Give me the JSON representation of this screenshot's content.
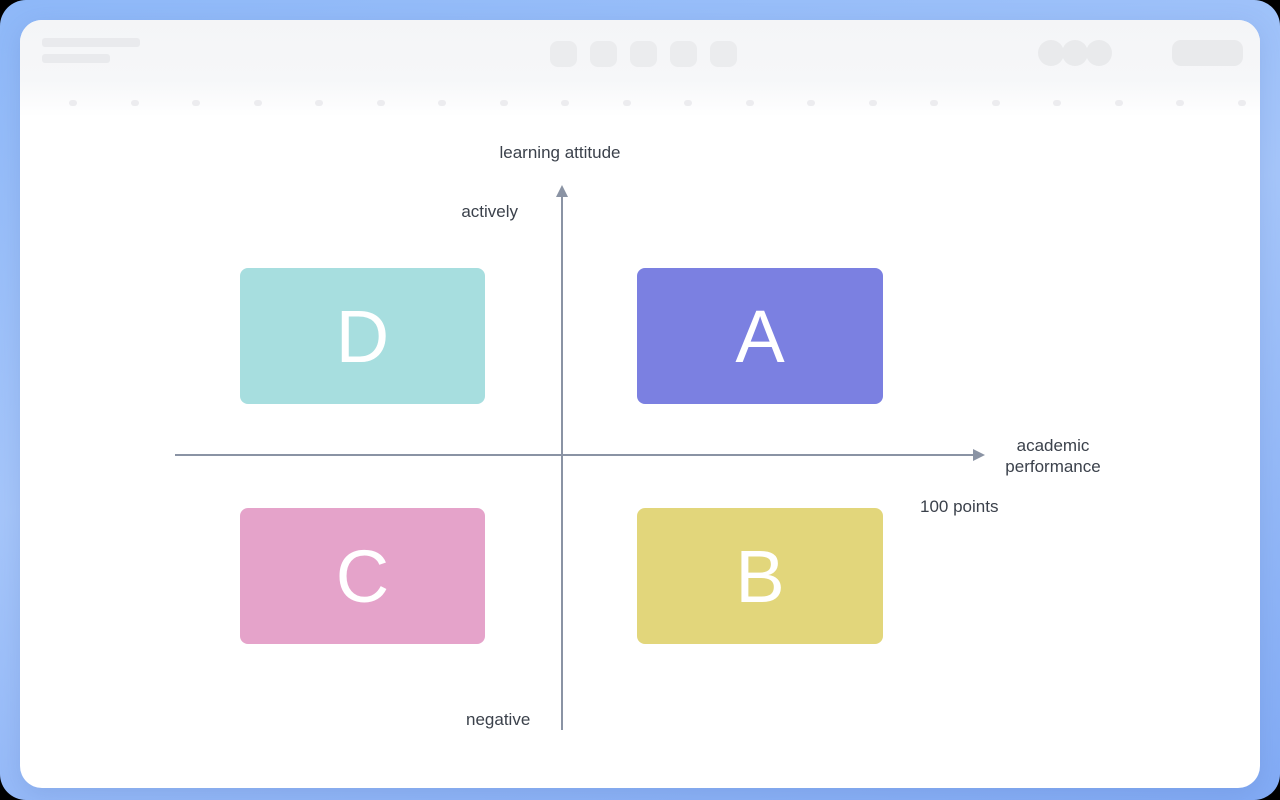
{
  "frame": {
    "background_gradient": [
      "#8eb8f8",
      "#a6c6fa",
      "#82abf5"
    ]
  },
  "toolbar": {
    "skeleton_bar_count": 2,
    "center_button_count": 5,
    "circle_count": 3,
    "dot_count": 20,
    "skeleton_color": "#e9eaec"
  },
  "diagram": {
    "axis_color": "#8a93a4",
    "text_color": "#3b414b",
    "y_axis_title": "learning attitude",
    "y_positive_label": "actively",
    "y_negative_label": "negative",
    "x_axis_label_line1": "academic",
    "x_axis_label_line2": "performance",
    "x_axis_scale_label": "100 points",
    "quadrants": [
      {
        "id": "A",
        "label": "A",
        "position": "top-right",
        "color": "#7b80e1"
      },
      {
        "id": "B",
        "label": "B",
        "position": "bottom-right",
        "color": "#e2d67b"
      },
      {
        "id": "C",
        "label": "C",
        "position": "bottom-left",
        "color": "#e5a3ca"
      },
      {
        "id": "D",
        "label": "D",
        "position": "top-left",
        "color": "#a7dedf"
      }
    ]
  }
}
